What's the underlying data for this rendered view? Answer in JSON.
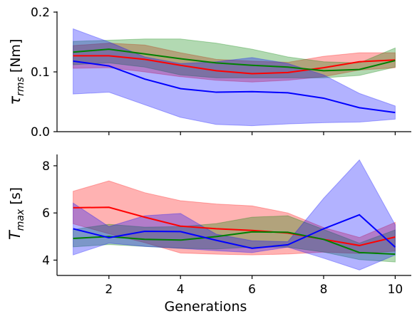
{
  "chart_data": [
    {
      "type": "line",
      "ylabel_main": "τ",
      "ylabel_sub": "rms",
      "ylabel_unit": " [Nm]",
      "xlabel": "",
      "ylim": [
        0.0,
        0.2
      ],
      "xlim": [
        0.55,
        10.45
      ],
      "yticks": [
        0.0,
        0.1,
        0.2
      ],
      "ytick_labels": [
        "0.0",
        "0.1",
        "0.2"
      ],
      "x": [
        1,
        2,
        3,
        4,
        5,
        6,
        7,
        8,
        9,
        10
      ],
      "series": [
        {
          "color": "#ff0000",
          "fill": "#ff0000",
          "mean": [
            0.127,
            0.127,
            0.121,
            0.111,
            0.102,
            0.097,
            0.099,
            0.107,
            0.117,
            0.12
          ],
          "upper": [
            0.144,
            0.148,
            0.145,
            0.132,
            0.121,
            0.118,
            0.116,
            0.126,
            0.132,
            0.132
          ],
          "lower": [
            0.106,
            0.107,
            0.1,
            0.092,
            0.086,
            0.083,
            0.086,
            0.092,
            0.103,
            0.107
          ]
        },
        {
          "color": "#008000",
          "fill": "#008000",
          "mean": [
            0.133,
            0.138,
            0.13,
            0.122,
            0.115,
            0.111,
            0.108,
            0.102,
            0.104,
            0.119
          ],
          "upper": [
            0.151,
            0.153,
            0.155,
            0.155,
            0.148,
            0.138,
            0.125,
            0.117,
            0.115,
            0.14
          ],
          "lower": [
            0.112,
            0.115,
            0.108,
            0.095,
            0.09,
            0.09,
            0.09,
            0.09,
            0.094,
            0.108
          ]
        },
        {
          "color": "#0000ff",
          "fill": "#0000ff",
          "mean": [
            0.118,
            0.11,
            0.088,
            0.072,
            0.066,
            0.067,
            0.065,
            0.056,
            0.04,
            0.032
          ],
          "upper": [
            0.172,
            0.15,
            0.125,
            0.114,
            0.117,
            0.124,
            0.114,
            0.095,
            0.064,
            0.043
          ],
          "lower": [
            0.063,
            0.066,
            0.045,
            0.024,
            0.012,
            0.01,
            0.013,
            0.015,
            0.016,
            0.021
          ]
        }
      ]
    },
    {
      "type": "line",
      "ylabel_main": "T",
      "ylabel_sub": "max",
      "ylabel_unit": " [s]",
      "xlabel": "Generations",
      "ylim": [
        3.35,
        8.45
      ],
      "xlim": [
        0.55,
        10.45
      ],
      "yticks": [
        4,
        6,
        8
      ],
      "ytick_labels": [
        "4",
        "6",
        "8"
      ],
      "xticks": [
        2,
        4,
        6,
        8,
        10
      ],
      "xtick_labels": [
        "2",
        "4",
        "6",
        "8",
        "10"
      ],
      "x": [
        1,
        2,
        3,
        4,
        5,
        6,
        7,
        8,
        9,
        10
      ],
      "series": [
        {
          "color": "#ff0000",
          "fill": "#ff0000",
          "mean": [
            6.22,
            6.24,
            5.82,
            5.44,
            5.33,
            5.26,
            5.15,
            4.88,
            4.62,
            4.98
          ],
          "upper": [
            6.92,
            7.36,
            6.86,
            6.52,
            6.38,
            6.3,
            6.0,
            5.38,
            4.96,
            5.6
          ],
          "lower": [
            5.54,
            5.12,
            4.74,
            4.3,
            4.25,
            4.22,
            4.26,
            4.34,
            4.28,
            4.38
          ]
        },
        {
          "color": "#008000",
          "fill": "#008000",
          "mean": [
            4.92,
            5.0,
            4.88,
            4.85,
            5.0,
            5.2,
            5.18,
            4.88,
            4.32,
            4.25
          ],
          "upper": [
            5.3,
            5.52,
            5.4,
            5.42,
            5.55,
            5.82,
            5.88,
            5.3,
            4.72,
            5.28
          ],
          "lower": [
            4.56,
            4.66,
            4.58,
            4.5,
            4.47,
            4.55,
            4.55,
            4.34,
            4.02,
            3.92
          ]
        },
        {
          "color": "#0000ff",
          "fill": "#0000ff",
          "mean": [
            5.33,
            4.95,
            5.22,
            5.21,
            4.84,
            4.5,
            4.65,
            5.33,
            5.92,
            4.55
          ],
          "upper": [
            6.42,
            5.42,
            5.88,
            5.98,
            5.1,
            4.82,
            4.78,
            6.62,
            8.25,
            5.5
          ],
          "lower": [
            4.22,
            4.72,
            4.58,
            4.5,
            4.4,
            4.32,
            4.55,
            4.08,
            3.58,
            4.22
          ]
        }
      ]
    }
  ]
}
